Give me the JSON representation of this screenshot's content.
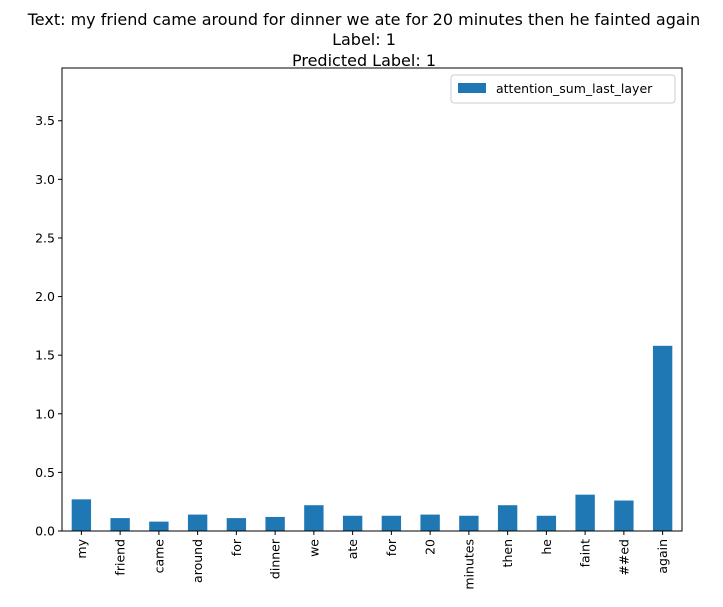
{
  "chart_data": {
    "type": "bar",
    "title_lines": [
      "Text: my friend came around for dinner we ate for 20 minutes then he fainted again",
      "Label: 1",
      "Predicted Label: 1"
    ],
    "categories": [
      "my",
      "friend",
      "came",
      "around",
      "for",
      "dinner",
      "we",
      "ate",
      "for",
      "20",
      "minutes",
      "then",
      "he",
      "faint",
      "##ed",
      "again"
    ],
    "series": [
      {
        "name": "attention_sum_last_layer",
        "values": [
          0.27,
          0.11,
          0.08,
          0.14,
          0.11,
          0.12,
          0.22,
          0.13,
          0.13,
          0.14,
          0.13,
          0.22,
          0.13,
          0.31,
          0.26,
          1.58
        ],
        "color": "#1f77b4"
      }
    ],
    "xlabel": "",
    "ylabel": "",
    "ylim": [
      0,
      3.95
    ],
    "yticks": [
      "0.0",
      "0.5",
      "1.0",
      "1.5",
      "2.0",
      "2.5",
      "3.0",
      "3.5"
    ],
    "grid": false,
    "legend_position": "top-right"
  }
}
